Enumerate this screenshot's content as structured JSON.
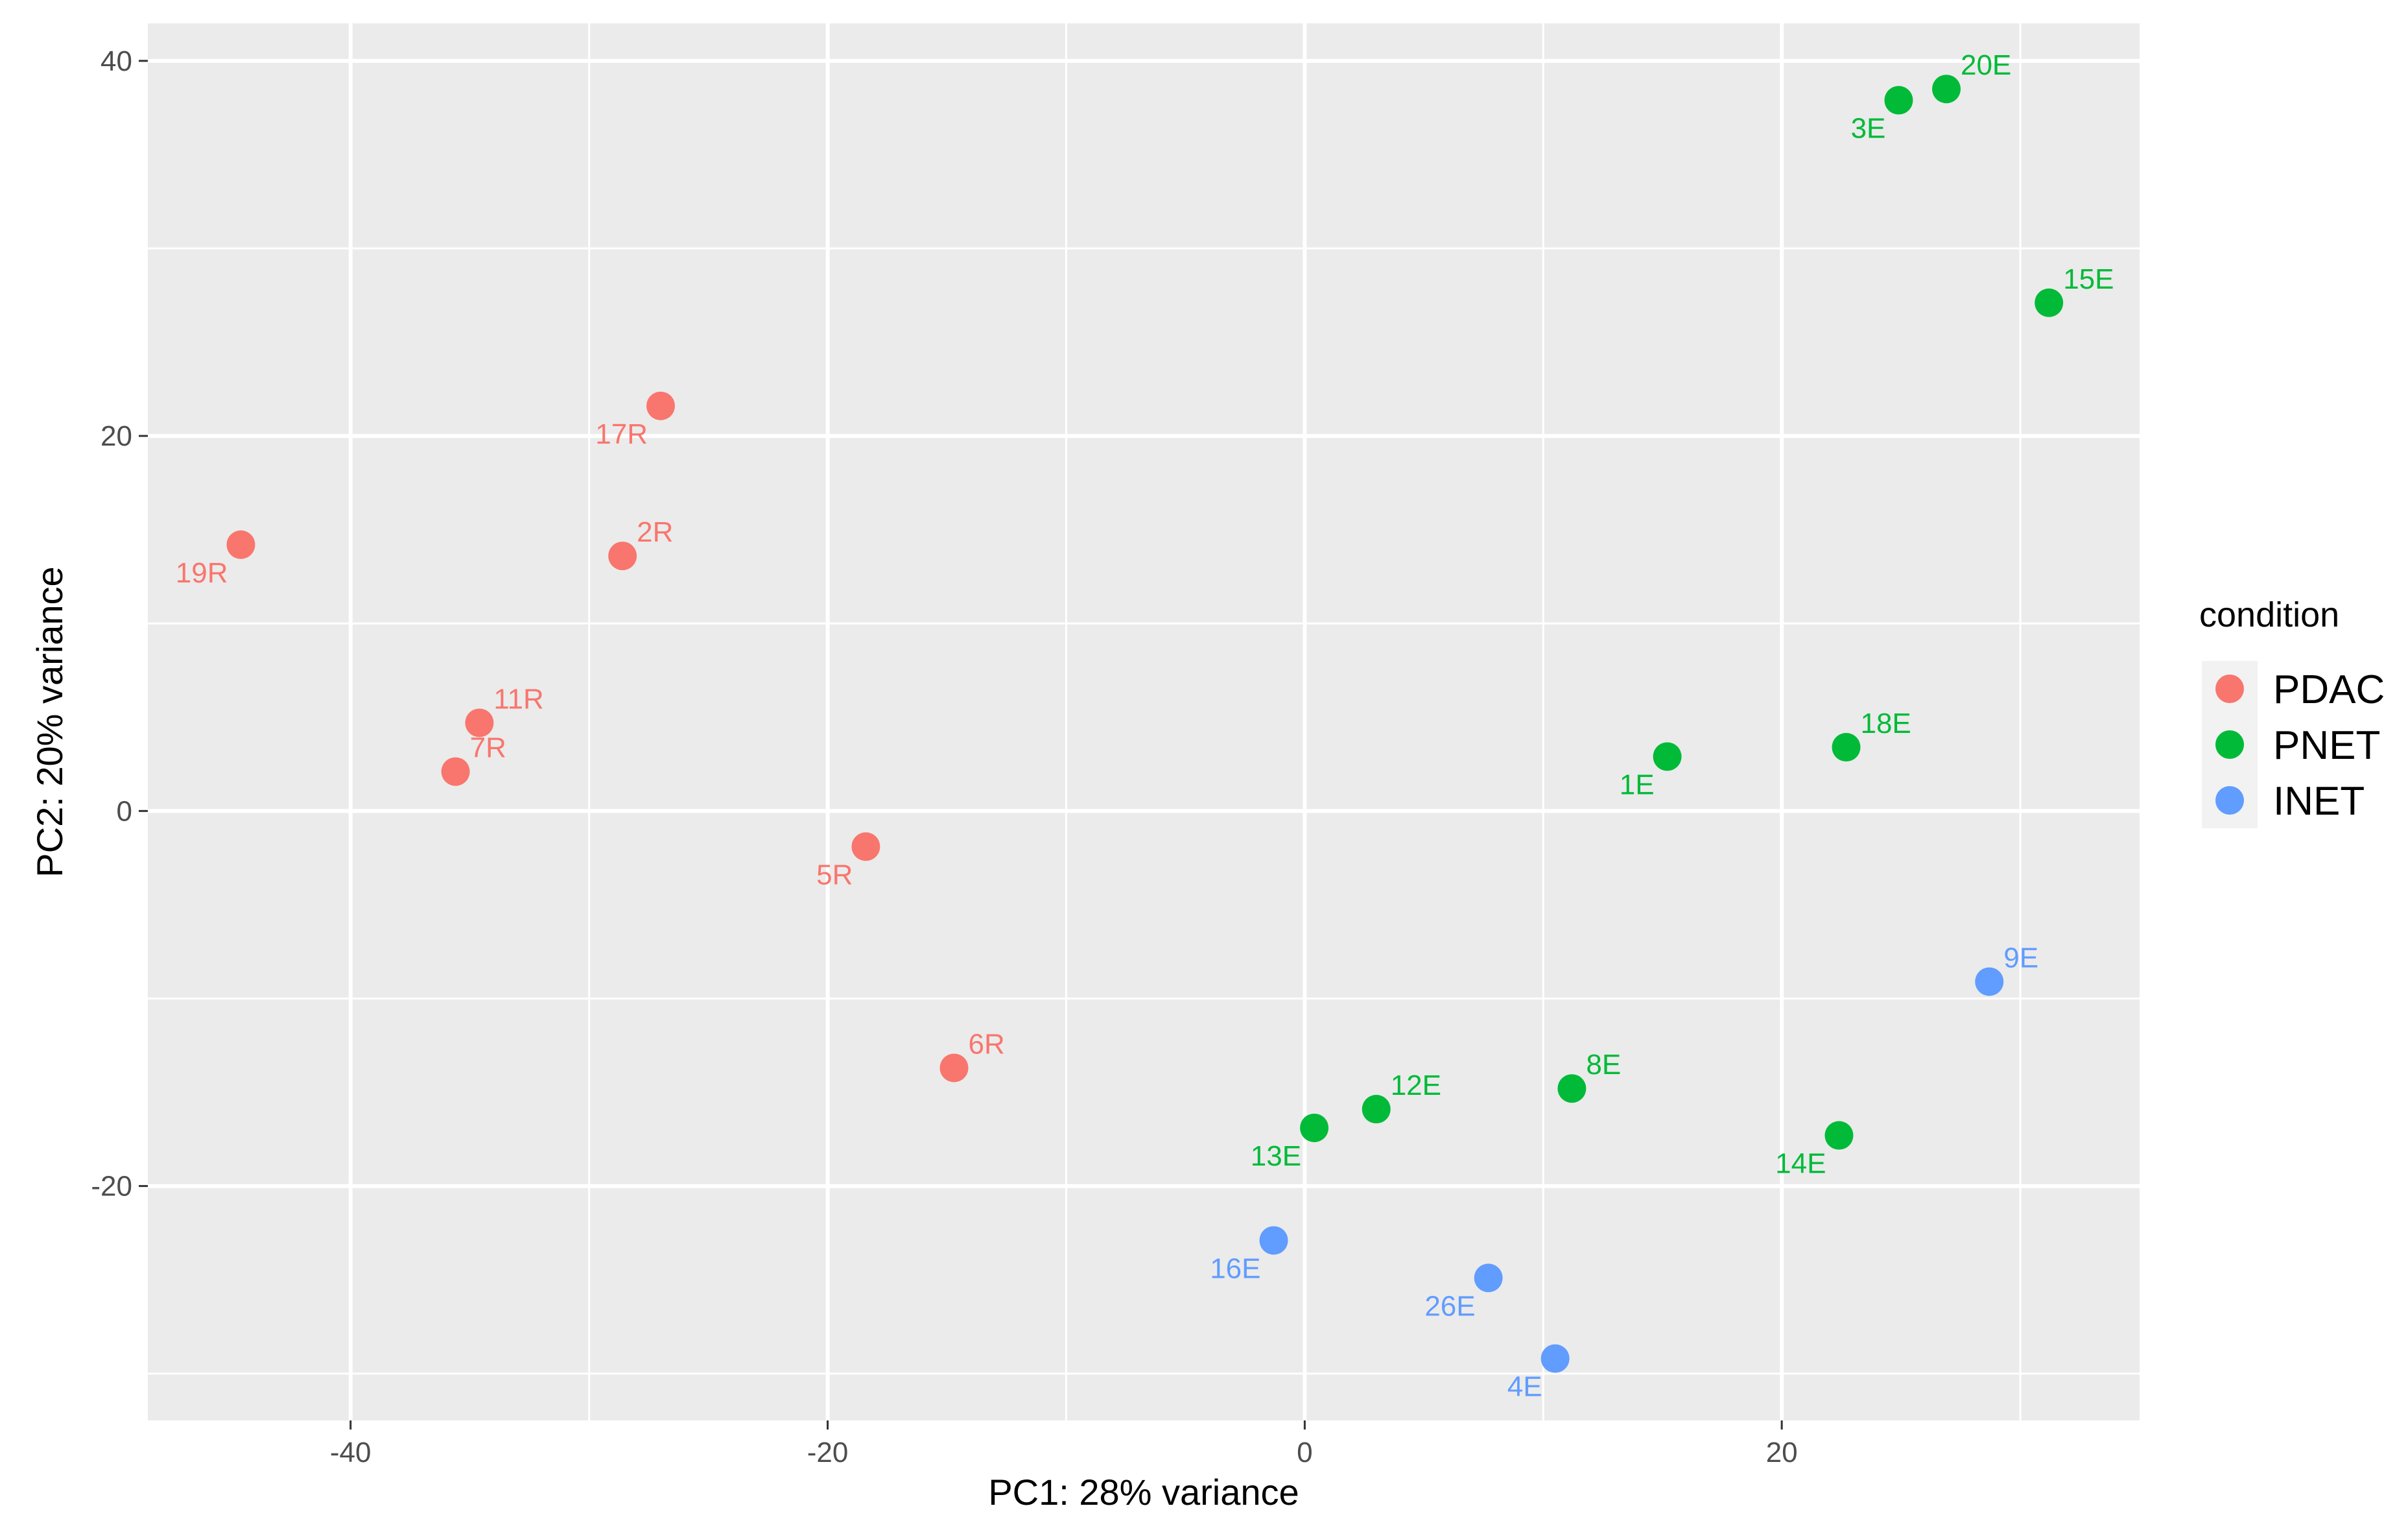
{
  "chart_data": {
    "type": "scatter",
    "xlabel": "PC1: 28% variance",
    "ylabel": "PC2: 20% variance",
    "xlim": [
      -48.5,
      35
    ],
    "ylim": [
      -32.5,
      42
    ],
    "xticks": [
      -40,
      -20,
      0,
      20
    ],
    "yticks": [
      -20,
      0,
      20,
      40
    ],
    "xminor": [
      -30,
      -10,
      10,
      30
    ],
    "yminor": [
      -30,
      -10,
      10,
      30
    ],
    "grid": true,
    "panel_background": "#ebebeb",
    "legend": {
      "title": "condition",
      "position": "right",
      "entries": [
        {
          "label": "PDAC",
          "color": "#f8766d"
        },
        {
          "label": "PNET",
          "color": "#00ba38"
        },
        {
          "label": "INET",
          "color": "#619cff"
        }
      ]
    },
    "series": [
      {
        "name": "PDAC",
        "color": "#f8766d",
        "points": [
          {
            "label": "17R",
            "x": -27,
            "y": 21.6,
            "label_pos": "bl"
          },
          {
            "label": "19R",
            "x": -44.6,
            "y": 14.2,
            "label_pos": "bl"
          },
          {
            "label": "2R",
            "x": -28.6,
            "y": 13.6,
            "label_pos": "tr"
          },
          {
            "label": "11R",
            "x": -34.6,
            "y": 4.7,
            "label_pos": "tr"
          },
          {
            "label": "7R",
            "x": -35.6,
            "y": 2.1,
            "label_pos": "tr"
          },
          {
            "label": "5R",
            "x": -18.4,
            "y": -1.9,
            "label_pos": "bl"
          },
          {
            "label": "6R",
            "x": -14.7,
            "y": -13.7,
            "label_pos": "tr"
          }
        ]
      },
      {
        "name": "PNET",
        "color": "#00ba38",
        "points": [
          {
            "label": "3E",
            "x": 24.9,
            "y": 37.9,
            "label_pos": "bl"
          },
          {
            "label": "20E",
            "x": 26.9,
            "y": 38.5,
            "label_pos": "tr"
          },
          {
            "label": "15E",
            "x": 31.2,
            "y": 27.1,
            "label_pos": "tr"
          },
          {
            "label": "1E",
            "x": 15.2,
            "y": 2.9,
            "label_pos": "bl"
          },
          {
            "label": "18E",
            "x": 22.7,
            "y": 3.4,
            "label_pos": "tr"
          },
          {
            "label": "12E",
            "x": 3,
            "y": -15.9,
            "label_pos": "tr"
          },
          {
            "label": "13E",
            "x": 0.4,
            "y": -16.9,
            "label_pos": "bl"
          },
          {
            "label": "8E",
            "x": 11.2,
            "y": -14.8,
            "label_pos": "tr"
          },
          {
            "label": "14E",
            "x": 22.4,
            "y": -17.3,
            "label_pos": "bl"
          }
        ]
      },
      {
        "name": "INET",
        "color": "#619cff",
        "points": [
          {
            "label": "9E",
            "x": 28.7,
            "y": -9.1,
            "label_pos": "tr"
          },
          {
            "label": "16E",
            "x": -1.3,
            "y": -22.9,
            "label_pos": "bl"
          },
          {
            "label": "26E",
            "x": 7.7,
            "y": -24.9,
            "label_pos": "bl"
          },
          {
            "label": "4E",
            "x": 10.5,
            "y": -29.2,
            "label_pos": "bl"
          }
        ]
      }
    ]
  }
}
